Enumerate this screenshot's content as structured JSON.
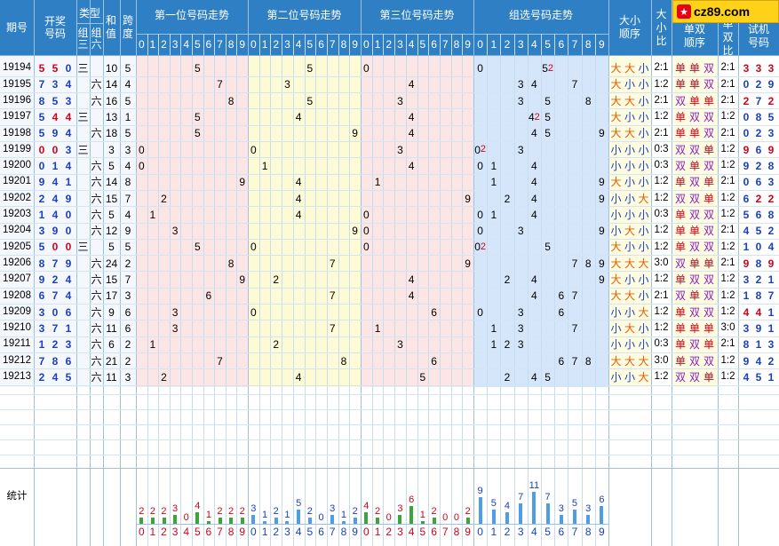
{
  "logo": {
    "text": "cz89.com"
  },
  "header": {
    "issue": "期号",
    "draw": "开奖号码",
    "type": "类型",
    "type_g3": "组三",
    "type_g6": "组六",
    "sum": "和值",
    "span": "跨度",
    "pos1": "第一位号码走势",
    "pos2": "第二位号码走势",
    "pos3": "第三位号码走势",
    "group": "组选号码走势",
    "bs_order": "大小顺序",
    "bs_ratio": "大小比",
    "oe_order": "单双顺序",
    "oe_ratio": "单双比",
    "trial": "试机号码",
    "digits": [
      "0",
      "1",
      "2",
      "3",
      "4",
      "5",
      "6",
      "7",
      "8",
      "9"
    ]
  },
  "rows": [
    {
      "issue": "19194",
      "draw": [
        "5",
        "5",
        "0"
      ],
      "type": "三",
      "sum": "10",
      "span": "5",
      "group_marks": {
        "5": "2"
      },
      "bs": [
        "大",
        "大",
        "小"
      ],
      "bs_ratio": "2:1",
      "oe": [
        "单",
        "单",
        "双"
      ],
      "oe_ratio": "2:1",
      "trial": [
        "3",
        "3",
        "3"
      ]
    },
    {
      "issue": "19195",
      "draw": [
        "7",
        "3",
        "4"
      ],
      "type": "六",
      "sum": "14",
      "span": "4",
      "group_marks": {},
      "bs": [
        "大",
        "小",
        "小"
      ],
      "bs_ratio": "1:2",
      "oe": [
        "单",
        "单",
        "双"
      ],
      "oe_ratio": "2:1",
      "trial": [
        "0",
        "2",
        "9"
      ]
    },
    {
      "issue": "19196",
      "draw": [
        "8",
        "5",
        "3"
      ],
      "type": "六",
      "sum": "16",
      "span": "5",
      "group_marks": {},
      "bs": [
        "大",
        "大",
        "小"
      ],
      "bs_ratio": "2:1",
      "oe": [
        "双",
        "单",
        "单"
      ],
      "oe_ratio": "2:1",
      "trial": [
        "2",
        "7",
        "2"
      ]
    },
    {
      "issue": "19197",
      "draw": [
        "5",
        "4",
        "4"
      ],
      "type": "三",
      "sum": "13",
      "span": "1",
      "group_marks": {
        "4": "2"
      },
      "bs": [
        "大",
        "小",
        "小"
      ],
      "bs_ratio": "1:2",
      "oe": [
        "单",
        "双",
        "双"
      ],
      "oe_ratio": "1:2",
      "trial": [
        "0",
        "8",
        "5"
      ]
    },
    {
      "issue": "19198",
      "draw": [
        "5",
        "9",
        "4"
      ],
      "type": "六",
      "sum": "18",
      "span": "5",
      "group_marks": {},
      "bs": [
        "大",
        "大",
        "小"
      ],
      "bs_ratio": "2:1",
      "oe": [
        "单",
        "单",
        "双"
      ],
      "oe_ratio": "2:1",
      "trial": [
        "0",
        "2",
        "3"
      ]
    },
    {
      "issue": "19199",
      "draw": [
        "0",
        "0",
        "3"
      ],
      "type": "三",
      "sum": "3",
      "span": "3",
      "group_marks": {
        "0": "2"
      },
      "bs": [
        "小",
        "小",
        "小"
      ],
      "bs_ratio": "0:3",
      "oe": [
        "双",
        "双",
        "单"
      ],
      "oe_ratio": "1:2",
      "trial": [
        "9",
        "6",
        "9"
      ]
    },
    {
      "issue": "19200",
      "draw": [
        "0",
        "1",
        "4"
      ],
      "type": "六",
      "sum": "5",
      "span": "4",
      "group_marks": {},
      "bs": [
        "小",
        "小",
        "小"
      ],
      "bs_ratio": "0:3",
      "oe": [
        "双",
        "单",
        "双"
      ],
      "oe_ratio": "1:2",
      "trial": [
        "9",
        "2",
        "8"
      ]
    },
    {
      "issue": "19201",
      "draw": [
        "9",
        "4",
        "1"
      ],
      "type": "六",
      "sum": "14",
      "span": "8",
      "group_marks": {},
      "bs": [
        "大",
        "小",
        "小"
      ],
      "bs_ratio": "1:2",
      "oe": [
        "单",
        "双",
        "单"
      ],
      "oe_ratio": "2:1",
      "trial": [
        "0",
        "6",
        "3"
      ]
    },
    {
      "issue": "19202",
      "draw": [
        "2",
        "4",
        "9"
      ],
      "type": "六",
      "sum": "15",
      "span": "7",
      "group_marks": {},
      "bs": [
        "小",
        "小",
        "大"
      ],
      "bs_ratio": "1:2",
      "oe": [
        "双",
        "双",
        "单"
      ],
      "oe_ratio": "1:2",
      "trial": [
        "6",
        "2",
        "2"
      ]
    },
    {
      "issue": "19203",
      "draw": [
        "1",
        "4",
        "0"
      ],
      "type": "六",
      "sum": "5",
      "span": "4",
      "group_marks": {},
      "bs": [
        "小",
        "小",
        "小"
      ],
      "bs_ratio": "0:3",
      "oe": [
        "单",
        "双",
        "双"
      ],
      "oe_ratio": "1:2",
      "trial": [
        "5",
        "6",
        "8"
      ]
    },
    {
      "issue": "19204",
      "draw": [
        "3",
        "9",
        "0"
      ],
      "type": "六",
      "sum": "12",
      "span": "9",
      "group_marks": {},
      "bs": [
        "小",
        "大",
        "小"
      ],
      "bs_ratio": "1:2",
      "oe": [
        "单",
        "单",
        "双"
      ],
      "oe_ratio": "2:1",
      "trial": [
        "4",
        "5",
        "2"
      ]
    },
    {
      "issue": "19205",
      "draw": [
        "5",
        "0",
        "0"
      ],
      "type": "三",
      "sum": "5",
      "span": "5",
      "group_marks": {
        "0": "2"
      },
      "bs": [
        "大",
        "小",
        "小"
      ],
      "bs_ratio": "1:2",
      "oe": [
        "单",
        "双",
        "双"
      ],
      "oe_ratio": "1:2",
      "trial": [
        "1",
        "0",
        "4"
      ]
    },
    {
      "issue": "19206",
      "draw": [
        "8",
        "7",
        "9"
      ],
      "type": "六",
      "sum": "24",
      "span": "2",
      "group_marks": {},
      "bs": [
        "大",
        "大",
        "大"
      ],
      "bs_ratio": "3:0",
      "oe": [
        "双",
        "单",
        "单"
      ],
      "oe_ratio": "2:1",
      "trial": [
        "9",
        "8",
        "9"
      ]
    },
    {
      "issue": "19207",
      "draw": [
        "9",
        "2",
        "4"
      ],
      "type": "六",
      "sum": "15",
      "span": "7",
      "group_marks": {},
      "bs": [
        "大",
        "小",
        "小"
      ],
      "bs_ratio": "1:2",
      "oe": [
        "单",
        "双",
        "双"
      ],
      "oe_ratio": "1:2",
      "trial": [
        "3",
        "2",
        "1"
      ]
    },
    {
      "issue": "19208",
      "draw": [
        "6",
        "7",
        "4"
      ],
      "type": "六",
      "sum": "17",
      "span": "3",
      "group_marks": {},
      "bs": [
        "大",
        "大",
        "小"
      ],
      "bs_ratio": "2:1",
      "oe": [
        "双",
        "单",
        "双"
      ],
      "oe_ratio": "1:2",
      "trial": [
        "1",
        "8",
        "7"
      ]
    },
    {
      "issue": "19209",
      "draw": [
        "3",
        "0",
        "6"
      ],
      "type": "六",
      "sum": "9",
      "span": "6",
      "group_marks": {},
      "bs": [
        "小",
        "小",
        "大"
      ],
      "bs_ratio": "1:2",
      "oe": [
        "单",
        "双",
        "双"
      ],
      "oe_ratio": "1:2",
      "trial": [
        "4",
        "4",
        "1"
      ]
    },
    {
      "issue": "19210",
      "draw": [
        "3",
        "7",
        "1"
      ],
      "type": "六",
      "sum": "11",
      "span": "6",
      "group_marks": {},
      "bs": [
        "小",
        "大",
        "小"
      ],
      "bs_ratio": "1:2",
      "oe": [
        "单",
        "单",
        "单"
      ],
      "oe_ratio": "3:0",
      "trial": [
        "3",
        "9",
        "1"
      ]
    },
    {
      "issue": "19211",
      "draw": [
        "1",
        "2",
        "3"
      ],
      "type": "六",
      "sum": "6",
      "span": "2",
      "group_marks": {},
      "bs": [
        "小",
        "小",
        "小"
      ],
      "bs_ratio": "0:3",
      "oe": [
        "单",
        "双",
        "单"
      ],
      "oe_ratio": "2:1",
      "trial": [
        "8",
        "1",
        "3"
      ]
    },
    {
      "issue": "19212",
      "draw": [
        "7",
        "8",
        "6"
      ],
      "type": "六",
      "sum": "21",
      "span": "2",
      "group_marks": {},
      "bs": [
        "大",
        "大",
        "大"
      ],
      "bs_ratio": "3:0",
      "oe": [
        "单",
        "双",
        "双"
      ],
      "oe_ratio": "1:2",
      "trial": [
        "9",
        "4",
        "2"
      ]
    },
    {
      "issue": "19213",
      "draw": [
        "2",
        "4",
        "5"
      ],
      "type": "六",
      "sum": "11",
      "span": "3",
      "group_marks": {},
      "bs": [
        "小",
        "小",
        "大"
      ],
      "bs_ratio": "1:2",
      "oe": [
        "双",
        "双",
        "单"
      ],
      "oe_ratio": "1:2",
      "trial": [
        "4",
        "5",
        "1"
      ]
    }
  ],
  "stats": {
    "label": "统计",
    "pos1": [
      2,
      2,
      2,
      3,
      0,
      4,
      1,
      2,
      2,
      2
    ],
    "pos2": [
      3,
      1,
      2,
      1,
      5,
      2,
      0,
      3,
      1,
      2
    ],
    "pos3": [
      4,
      2,
      0,
      3,
      6,
      1,
      2,
      0,
      0,
      2
    ],
    "group": [
      9,
      5,
      4,
      7,
      11,
      7,
      3,
      5,
      3,
      6
    ]
  },
  "colors": {
    "header_bg": "#2f7fc4",
    "pos1_bg": "#fbe5e5",
    "pos2_bg": "#fdfbd6",
    "pos3_bg": "#fbe5e5",
    "group_bg": "#d6e6fa",
    "stat_green": "#3aa53a",
    "stat_blue": "#4d9ee6",
    "red": "#d0021b",
    "blue": "#1a3fc0",
    "orange": "#e65c00",
    "purple": "#8a1ec0"
  }
}
